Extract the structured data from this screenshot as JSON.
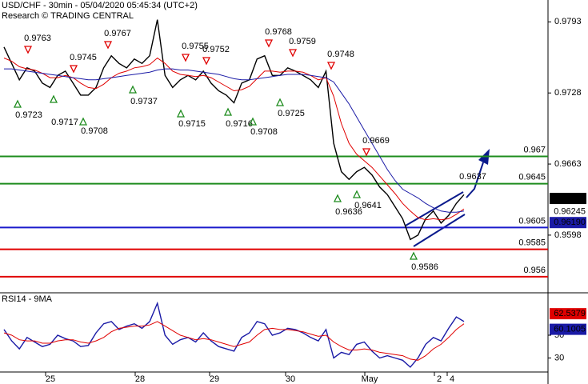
{
  "chart_data": [
    {
      "type": "line",
      "title": "USD/CHF - 30min - 05/04/2020 05:45:34 (UTC+2)",
      "subtitle": "Research © TRADING CENTRAL",
      "ylim": [
        0.9546,
        0.9813
      ],
      "yticks": [
        0.9793,
        0.9728,
        0.9663,
        0.9598
      ],
      "series": [
        {
          "color": "#000000",
          "values": [
            0.977,
            0.9755,
            0.974,
            0.9751,
            0.9748,
            0.9737,
            0.9733,
            0.9744,
            0.9748,
            0.9737,
            0.9726,
            0.9726,
            0.9733,
            0.9751,
            0.9762,
            0.9755,
            0.9751,
            0.9759,
            0.9755,
            0.9762,
            0.9795,
            0.9744,
            0.9733,
            0.974,
            0.9744,
            0.974,
            0.9748,
            0.9737,
            0.973,
            0.9726,
            0.9719,
            0.9737,
            0.974,
            0.9759,
            0.9762,
            0.9744,
            0.9744,
            0.9751,
            0.9748,
            0.9744,
            0.974,
            0.9733,
            0.9748,
            0.9682,
            0.9656,
            0.9649,
            0.9656,
            0.966,
            0.9653,
            0.9642,
            0.9635,
            0.9624,
            0.9613,
            0.9594,
            0.9598,
            0.9613,
            0.962,
            0.9609,
            0.9616,
            0.9627,
            0.9635
          ]
        },
        {
          "color": "#e00000",
          "values": [
            0.976,
            0.9757,
            0.9752,
            0.975,
            0.9749,
            0.9746,
            0.9742,
            0.9742,
            0.9744,
            0.9742,
            0.9737,
            0.9733,
            0.9732,
            0.9736,
            0.9742,
            0.9746,
            0.9748,
            0.9751,
            0.9752,
            0.9754,
            0.976,
            0.9755,
            0.9748,
            0.9745,
            0.9744,
            0.9743,
            0.9744,
            0.9742,
            0.9738,
            0.9734,
            0.973,
            0.9731,
            0.9734,
            0.9741,
            0.9748,
            0.9748,
            0.9747,
            0.9748,
            0.9748,
            0.9747,
            0.9744,
            0.974,
            0.9742,
            0.9725,
            0.97,
            0.9682,
            0.9672,
            0.9666,
            0.966,
            0.9652,
            0.9644,
            0.9636,
            0.9627,
            0.962,
            0.9614,
            0.9612,
            0.9613,
            0.9612,
            0.9613,
            0.9617,
            0.9622
          ]
        },
        {
          "color": "#1a1aa6",
          "values": [
            0.975,
            0.975,
            0.9749,
            0.9748,
            0.9747,
            0.9746,
            0.9745,
            0.9744,
            0.9743,
            0.9742,
            0.9741,
            0.974,
            0.974,
            0.9741,
            0.9742,
            0.9743,
            0.9744,
            0.9745,
            0.9746,
            0.9747,
            0.9749,
            0.975,
            0.975,
            0.9749,
            0.9749,
            0.9748,
            0.9747,
            0.9746,
            0.9745,
            0.9743,
            0.9741,
            0.974,
            0.974,
            0.9741,
            0.9742,
            0.9743,
            0.9744,
            0.9745,
            0.9745,
            0.9745,
            0.9744,
            0.9743,
            0.9742,
            0.9738,
            0.9728,
            0.9718,
            0.9706,
            0.9694,
            0.9682,
            0.967,
            0.9658,
            0.9648,
            0.964,
            0.9636,
            0.9632,
            0.9627,
            0.9623,
            0.962,
            0.9619,
            0.9619,
            0.962
          ]
        }
      ],
      "levels": [
        {
          "value": 0.967,
          "color": "#1e8c1e"
        },
        {
          "value": 0.9645,
          "color": "#1e8c1e"
        },
        {
          "value": 0.9605,
          "color": "#1a1acc"
        },
        {
          "value": 0.9585,
          "color": "#e00000"
        },
        {
          "value": 0.956,
          "color": "#e00000"
        }
      ],
      "price_tags": [
        {
          "value": 0.9633,
          "color": "#000000",
          "text_color": "#ffffff"
        },
        {
          "value": 0.96245,
          "color": "#ffffff",
          "text_color": "#e00000"
        },
        {
          "value": 0.9619,
          "label": "0.96190",
          "color": "#1a1aa6",
          "text_color": "#ffffff"
        }
      ],
      "highs": [
        0.9763,
        0.9745,
        0.9767,
        0.9755,
        0.9752,
        0.9768,
        0.9759,
        0.9748,
        0.9669
      ],
      "lows": [
        0.9723,
        0.9717,
        0.9708,
        0.9737,
        0.9715,
        0.9716,
        0.9708,
        0.9725,
        0.9636,
        0.9641,
        0.9586
      ],
      "target": 0.9637
    },
    {
      "type": "line",
      "title": "RSI14 - 9MA",
      "ylim": [
        17.7,
        85.8
      ],
      "yticks": [
        50,
        30
      ],
      "x_labels": [
        "25",
        "28",
        "29",
        "30",
        "May",
        "2",
        "4"
      ],
      "series": [
        {
          "color": "#1a1aa6",
          "values": [
            55,
            45,
            38,
            48,
            44,
            40,
            42,
            50,
            47,
            45,
            40,
            41,
            52,
            60,
            62,
            55,
            58,
            60,
            56,
            62,
            78,
            50,
            42,
            46,
            48,
            44,
            52,
            45,
            40,
            38,
            36,
            48,
            52,
            62,
            60,
            50,
            52,
            56,
            55,
            52,
            48,
            45,
            55,
            30,
            35,
            33,
            42,
            44,
            36,
            30,
            32,
            30,
            28,
            22,
            30,
            42,
            48,
            45,
            56,
            66,
            62
          ]
        },
        {
          "color": "#e00000",
          "values": [
            52,
            50,
            46,
            45,
            45,
            43,
            43,
            45,
            46,
            46,
            44,
            43,
            45,
            48,
            53,
            56,
            57,
            58,
            58,
            59,
            62,
            58,
            54,
            50,
            48,
            46,
            47,
            46,
            44,
            42,
            40,
            42,
            44,
            50,
            55,
            56,
            55,
            55,
            54,
            53,
            51,
            49,
            50,
            44,
            40,
            37,
            37,
            38,
            37,
            35,
            34,
            33,
            32,
            29,
            28,
            32,
            38,
            42,
            48,
            55,
            60
          ]
        }
      ],
      "price_tags": [
        {
          "value": 62.5379,
          "color": "#e00000",
          "text_color": "#ffffff"
        },
        {
          "value": 60.1005,
          "color": "#1a1aa6",
          "text_color": "#ffffff"
        }
      ]
    }
  ]
}
